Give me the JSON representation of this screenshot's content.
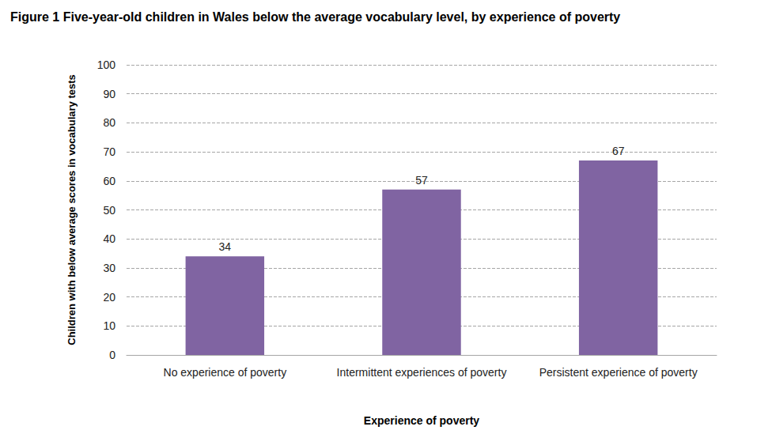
{
  "chart_data": {
    "type": "bar",
    "title": "Figure 1 Five-year-old children in Wales below the average vocabulary level, by experience of poverty",
    "x_label": "Experience of poverty",
    "y_label": "Children with below average scores in vocabulary tests",
    "categories": [
      "No experience of poverty",
      "Intermittent experiences of poverty",
      "Persistent experience of poverty"
    ],
    "values": [
      34,
      57,
      67
    ],
    "color": "#8064a2",
    "ylim": [
      0,
      100
    ],
    "yticks": [
      0,
      10,
      20,
      30,
      40,
      50,
      60,
      70,
      80,
      90,
      100
    ],
    "grid": true,
    "data_labels": true
  }
}
